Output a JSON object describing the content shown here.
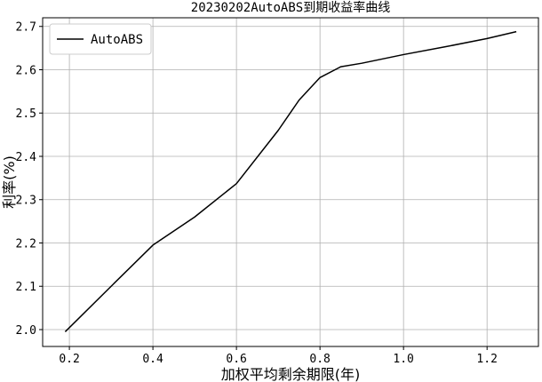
{
  "chart_data": {
    "type": "line",
    "title": "20230202AutoABS到期收益率曲线",
    "x_label": "加权平均剩余期限(年)",
    "y_label": "利率(%)",
    "x": [
      0.19,
      0.3,
      0.4,
      0.5,
      0.6,
      0.7,
      0.75,
      0.8,
      0.85,
      0.9,
      1.0,
      1.1,
      1.2,
      1.27
    ],
    "series": [
      {
        "name": "AutoABS",
        "color": "#000000",
        "values": [
          1.995,
          2.1,
          2.195,
          2.26,
          2.337,
          2.46,
          2.53,
          2.582,
          2.607,
          2.615,
          2.635,
          2.653,
          2.672,
          2.688
        ]
      }
    ],
    "xlim": [
      0.136,
      1.323
    ],
    "ylim": [
      1.961,
      2.72
    ],
    "xticks": [
      0.2,
      0.4,
      0.6,
      0.8,
      {
        "value": 1,
        "label": "1.0"
      },
      1.2
    ],
    "yticks": [
      {
        "value": 2,
        "label": "2.0"
      },
      2.1,
      2.2,
      2.3,
      2.4,
      2.5,
      2.6,
      2.7
    ],
    "grid": true,
    "legend": "upper left"
  }
}
